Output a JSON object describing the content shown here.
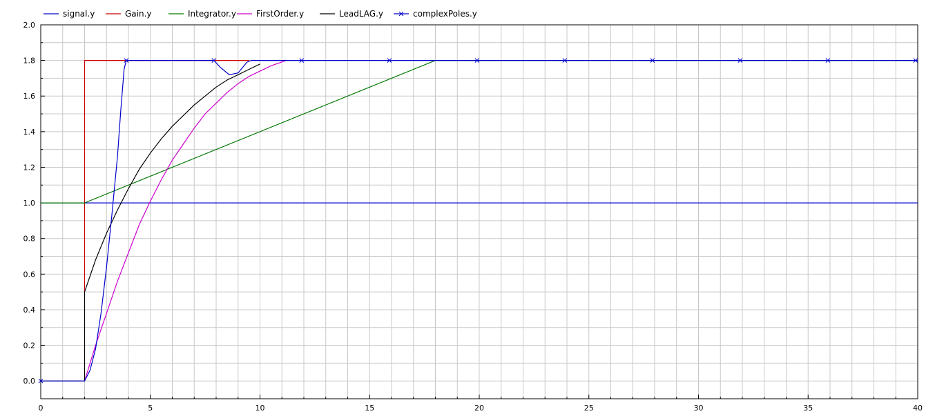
{
  "chart_data": {
    "type": "line",
    "title": "",
    "xlabel": "",
    "ylabel": "",
    "xlim": [
      0,
      40
    ],
    "ylim": [
      -0.1,
      2.0
    ],
    "grid": true,
    "legend_position": "top-left",
    "x_ticks": [
      "0",
      "5",
      "10",
      "15",
      "20",
      "25",
      "30",
      "35",
      "40"
    ],
    "y_ticks": [
      "0.0",
      "0.2",
      "0.4",
      "0.6",
      "0.8",
      "1.0",
      "1.2",
      "1.4",
      "1.6",
      "1.8",
      "2.0"
    ],
    "series": [
      {
        "name": "signal.y",
        "color": "#0000cc",
        "points": [
          [
            0,
            1.0
          ],
          [
            40,
            1.0
          ]
        ]
      },
      {
        "name": "Gain.y",
        "color": "#cc0000",
        "points": [
          [
            2,
            0.5
          ],
          [
            2,
            1.8
          ],
          [
            9.5,
            1.8
          ]
        ]
      },
      {
        "name": "Integrator.y",
        "color": "#007700",
        "points": [
          [
            0,
            1.0
          ],
          [
            2,
            1.0
          ],
          [
            18,
            1.8
          ],
          [
            40,
            1.8
          ]
        ]
      },
      {
        "name": "FirstOrder.y",
        "color": "#cc00cc",
        "points": [
          [
            2,
            0.0
          ],
          [
            2.5,
            0.2
          ],
          [
            3,
            0.38
          ],
          [
            3.5,
            0.56
          ],
          [
            4,
            0.72
          ],
          [
            4.5,
            0.88
          ],
          [
            5,
            1.01
          ],
          [
            5.5,
            1.13
          ],
          [
            6,
            1.24
          ],
          [
            6.5,
            1.33
          ],
          [
            7,
            1.42
          ],
          [
            7.5,
            1.5
          ],
          [
            8,
            1.56
          ],
          [
            8.5,
            1.62
          ],
          [
            9,
            1.67
          ],
          [
            9.5,
            1.71
          ],
          [
            10,
            1.74
          ],
          [
            10.5,
            1.77
          ],
          [
            11.2,
            1.8
          ]
        ]
      },
      {
        "name": "LeadLAG.y",
        "color": "#000000",
        "points": [
          [
            0,
            0.0
          ],
          [
            2,
            0.0
          ],
          [
            2,
            0.5
          ],
          [
            2.5,
            0.68
          ],
          [
            3,
            0.83
          ],
          [
            3.5,
            0.96
          ],
          [
            4,
            1.08
          ],
          [
            4.5,
            1.19
          ],
          [
            5,
            1.28
          ],
          [
            5.5,
            1.36
          ],
          [
            6,
            1.43
          ],
          [
            6.5,
            1.49
          ],
          [
            7,
            1.55
          ],
          [
            7.5,
            1.6
          ],
          [
            8,
            1.65
          ],
          [
            8.5,
            1.69
          ],
          [
            9,
            1.72
          ],
          [
            9.5,
            1.75
          ],
          [
            10,
            1.78
          ]
        ]
      },
      {
        "name": "complexPoles.y",
        "color": "#0000cc",
        "marker": "x",
        "points": [
          [
            0,
            0.0
          ],
          [
            2,
            0.0
          ],
          [
            2.25,
            0.06
          ],
          [
            2.5,
            0.18
          ],
          [
            2.75,
            0.38
          ],
          [
            3,
            0.64
          ],
          [
            3.25,
            0.94
          ],
          [
            3.5,
            1.26
          ],
          [
            3.65,
            1.52
          ],
          [
            3.8,
            1.75
          ],
          [
            3.9,
            1.8
          ],
          [
            7.9,
            1.8
          ],
          [
            8.2,
            1.76
          ],
          [
            8.6,
            1.72
          ],
          [
            9.0,
            1.73
          ],
          [
            9.4,
            1.79
          ],
          [
            9.6,
            1.8
          ],
          [
            40,
            1.8
          ]
        ],
        "marker_x": [
          0,
          3.9,
          7.9,
          11.9,
          15.9,
          19.9,
          23.9,
          27.9,
          31.9,
          35.9,
          39.9
        ]
      }
    ]
  }
}
